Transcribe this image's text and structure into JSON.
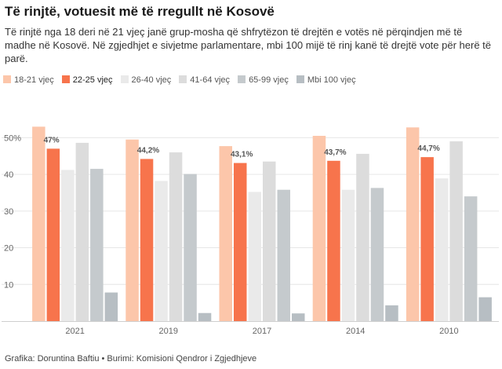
{
  "header": {
    "title": "Të rinjtë, votuesit më të rregullt në Kosovë",
    "subtitle": "Të rinjtë nga 18 deri në 21 vjeç janë grup-mosha që shfrytëzon të drejtën e votës në përqindjen më të madhe në Kosovë. Në zgjedhjet e sivjetme parlamentare, mbi 100 mijë të rinj kanë të drejtë vote për herë të parë."
  },
  "footer": {
    "credit": "Grafika: Doruntina Baftiu • Burimi: Komisioni Qendror i Zgjedhjeve"
  },
  "chart_data": {
    "type": "bar",
    "categories": [
      "2021",
      "2019",
      "2017",
      "2014",
      "2010"
    ],
    "series": [
      {
        "name": "18-21 vjeç",
        "color": "#fcc6aa",
        "values": [
          53,
          49.5,
          47.7,
          50.5,
          52.8
        ]
      },
      {
        "name": "22-25 vjeç",
        "color": "#f7744c",
        "values": [
          47,
          44.2,
          43.1,
          43.7,
          44.7
        ]
      },
      {
        "name": "26-40 vjeç",
        "color": "#eaeaea",
        "values": [
          41.2,
          38.2,
          35.2,
          35.8,
          38.9
        ]
      },
      {
        "name": "41-64 vjeç",
        "color": "#dcdcdc",
        "values": [
          48.6,
          46,
          43.5,
          45.6,
          49
        ]
      },
      {
        "name": "65-99 vjeç",
        "color": "#c5cacd",
        "values": [
          41.5,
          40.1,
          35.8,
          36.3,
          34
        ]
      },
      {
        "name": "Mbi 100 vjeç",
        "color": "#b7bec3",
        "values": [
          7.8,
          2.2,
          2.1,
          4.3,
          6.5
        ]
      }
    ],
    "data_labels": [
      "47%",
      "44,2%",
      "43,1%",
      "43,7%",
      "44,7%"
    ],
    "y_ticks": [
      "10",
      "20",
      "30",
      "40",
      "50%"
    ],
    "ylim": [
      0,
      55
    ],
    "grid": true,
    "legend_position": "top-left"
  }
}
